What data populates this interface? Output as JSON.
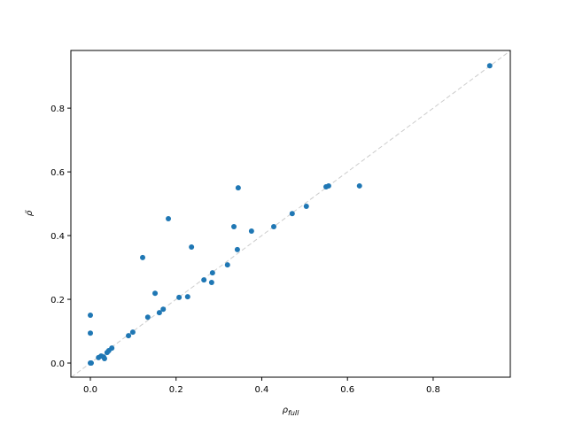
{
  "chart_data": {
    "type": "scatter",
    "xlabel": "ρ",
    "xlabel_subscript": "full",
    "ylabel": "ρ̃",
    "x": [
      0.932,
      0.556,
      0.55,
      0.628,
      0.345,
      0.182,
      0.504,
      0.471,
      0.428,
      0.335,
      0.376,
      0.236,
      0.343,
      0.122,
      0.32,
      0.285,
      0.265,
      0.283,
      0.151,
      0.227,
      0.207,
      0.17,
      0.161,
      0.134,
      0.099,
      0.089,
      0.0,
      0.0,
      0.05,
      0.043,
      0.039,
      0.025,
      0.031,
      0.019,
      0.033,
      0.002,
      0.0
    ],
    "values": [
      0.933,
      0.556,
      0.553,
      0.556,
      0.55,
      0.453,
      0.492,
      0.469,
      0.428,
      0.428,
      0.414,
      0.364,
      0.356,
      0.331,
      0.308,
      0.283,
      0.261,
      0.253,
      0.219,
      0.208,
      0.206,
      0.169,
      0.158,
      0.144,
      0.097,
      0.086,
      0.15,
      0.094,
      0.047,
      0.039,
      0.033,
      0.022,
      0.019,
      0.017,
      0.014,
      0.0,
      0.0
    ],
    "color": "#1f77b4",
    "xlim": [
      -0.0455,
      0.98
    ],
    "ylim": [
      -0.0444,
      0.981
    ],
    "xticks": [
      {
        "value": 0,
        "label": "0.0"
      },
      0.2,
      0.4,
      0.6,
      0.8
    ],
    "yticks": [
      {
        "value": 0,
        "label": "0.0"
      },
      0.2,
      0.4,
      0.6,
      0.8
    ],
    "diagonal": true
  }
}
